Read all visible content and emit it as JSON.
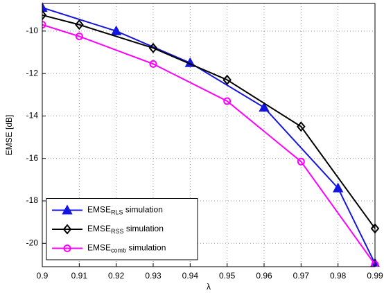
{
  "chart_data": {
    "type": "line",
    "xlabel": "λ",
    "ylabel": "EMSE [dB]",
    "xlim": [
      0.9,
      0.99
    ],
    "xticks": [
      0.9,
      0.91,
      0.92,
      0.93,
      0.94,
      0.95,
      0.96,
      0.97,
      0.98,
      0.99
    ],
    "ylim": [
      -21.1,
      -8.7
    ],
    "yticks": [
      -20,
      -18,
      -16,
      -14,
      -12,
      -10
    ],
    "grid": true,
    "legend": "lower-left",
    "series": [
      {
        "name": "EMSE",
        "name_sub": "RLS",
        "name_suffix": " simulation",
        "color": "#1515e0",
        "marker": "triangle",
        "x": [
          0.9,
          0.92,
          0.94,
          0.96,
          0.98,
          0.99
        ],
        "values": [
          -8.9,
          -10.0,
          -11.5,
          -13.6,
          -17.4,
          -20.95
        ]
      },
      {
        "name": "EMSE",
        "name_sub": "RSS",
        "name_suffix": " simulation",
        "color": "#000000",
        "marker": "diamond",
        "x": [
          0.9,
          0.91,
          0.93,
          0.95,
          0.97,
          0.99
        ],
        "values": [
          -9.25,
          -9.7,
          -10.8,
          -12.3,
          -14.5,
          -19.3
        ]
      },
      {
        "name": "EMSE",
        "name_sub": "comb",
        "name_suffix": " simulation",
        "color": "#ff00ff",
        "marker": "circle",
        "x": [
          0.9,
          0.91,
          0.93,
          0.95,
          0.97,
          0.99
        ],
        "values": [
          -9.7,
          -10.25,
          -11.55,
          -13.3,
          -16.15,
          -21.0
        ]
      }
    ]
  }
}
